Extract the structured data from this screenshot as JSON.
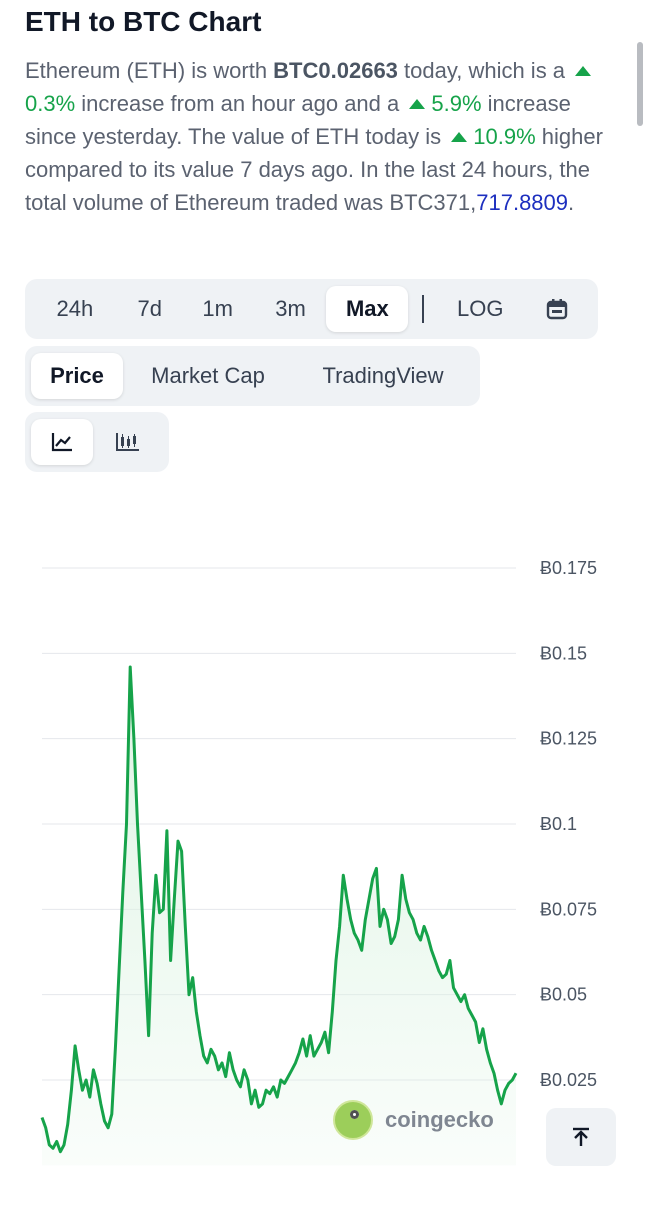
{
  "header": {
    "title": "ETH to BTC Chart"
  },
  "summary": {
    "p1": "Ethereum (ETH) is worth ",
    "price": "BTC0.02663",
    "p2": " today, which is a ",
    "hour_change": "0.3%",
    "p3": " increase from an hour ago and a ",
    "day_change": "5.9%",
    "p4": " increase since yesterday. The value of ETH today is ",
    "week_change": "10.9%",
    "p5": " higher compared to its value 7 days ago. In the last 24 hours, the total volume of Ethereum traded was ",
    "volume_a": "BTC371,",
    "volume_b": "717.8809",
    "p6": "."
  },
  "range_tabs": {
    "items": [
      {
        "label": "24h"
      },
      {
        "label": "7d"
      },
      {
        "label": "1m"
      },
      {
        "label": "3m"
      },
      {
        "label": "Max"
      }
    ],
    "active": "Max",
    "log_label": "LOG",
    "calendar_icon": "calendar-icon"
  },
  "type_tabs": {
    "items": [
      {
        "label": "Price"
      },
      {
        "label": "Market Cap"
      },
      {
        "label": "TradingView"
      }
    ],
    "active": "Price"
  },
  "style_tabs": {
    "items": [
      {
        "icon": "line-chart-icon"
      },
      {
        "icon": "candlestick-icon"
      }
    ],
    "active": "line-chart-icon"
  },
  "chart_data": {
    "type": "area",
    "title": "",
    "xlabel": "",
    "ylabel": "",
    "y_tick_labels": [
      "Ƀ0.175",
      "Ƀ0.15",
      "Ƀ0.125",
      "Ƀ0.1",
      "Ƀ0.075",
      "Ƀ0.05",
      "Ƀ0.025"
    ],
    "y_ticks": [
      0.175,
      0.15,
      0.125,
      0.1,
      0.075,
      0.05,
      0.025
    ],
    "ylim": [
      0.0,
      0.175
    ],
    "series_color": "#16a34a",
    "fill_color": "#dcf3e2",
    "values": [
      0.014,
      0.011,
      0.006,
      0.005,
      0.007,
      0.004,
      0.006,
      0.012,
      0.022,
      0.035,
      0.028,
      0.022,
      0.025,
      0.02,
      0.028,
      0.024,
      0.018,
      0.013,
      0.011,
      0.015,
      0.035,
      0.058,
      0.08,
      0.1,
      0.146,
      0.125,
      0.1,
      0.08,
      0.06,
      0.038,
      0.068,
      0.085,
      0.074,
      0.075,
      0.098,
      0.06,
      0.078,
      0.095,
      0.092,
      0.07,
      0.05,
      0.055,
      0.045,
      0.038,
      0.032,
      0.03,
      0.034,
      0.032,
      0.028,
      0.03,
      0.026,
      0.033,
      0.028,
      0.025,
      0.023,
      0.028,
      0.025,
      0.018,
      0.022,
      0.017,
      0.018,
      0.022,
      0.021,
      0.023,
      0.02,
      0.025,
      0.024,
      0.026,
      0.028,
      0.03,
      0.033,
      0.037,
      0.032,
      0.038,
      0.032,
      0.034,
      0.036,
      0.039,
      0.033,
      0.045,
      0.06,
      0.07,
      0.085,
      0.078,
      0.072,
      0.068,
      0.066,
      0.063,
      0.072,
      0.078,
      0.084,
      0.087,
      0.07,
      0.075,
      0.072,
      0.065,
      0.067,
      0.072,
      0.085,
      0.078,
      0.074,
      0.072,
      0.068,
      0.066,
      0.07,
      0.067,
      0.063,
      0.06,
      0.057,
      0.055,
      0.056,
      0.06,
      0.052,
      0.05,
      0.048,
      0.05,
      0.046,
      0.044,
      0.042,
      0.036,
      0.04,
      0.034,
      0.03,
      0.027,
      0.022,
      0.018,
      0.022,
      0.024,
      0.025,
      0.027
    ]
  },
  "watermark": {
    "text": "coingecko",
    "icon": "coingecko-logo-icon"
  },
  "scroll_top": {
    "icon": "arrow-up-icon"
  }
}
